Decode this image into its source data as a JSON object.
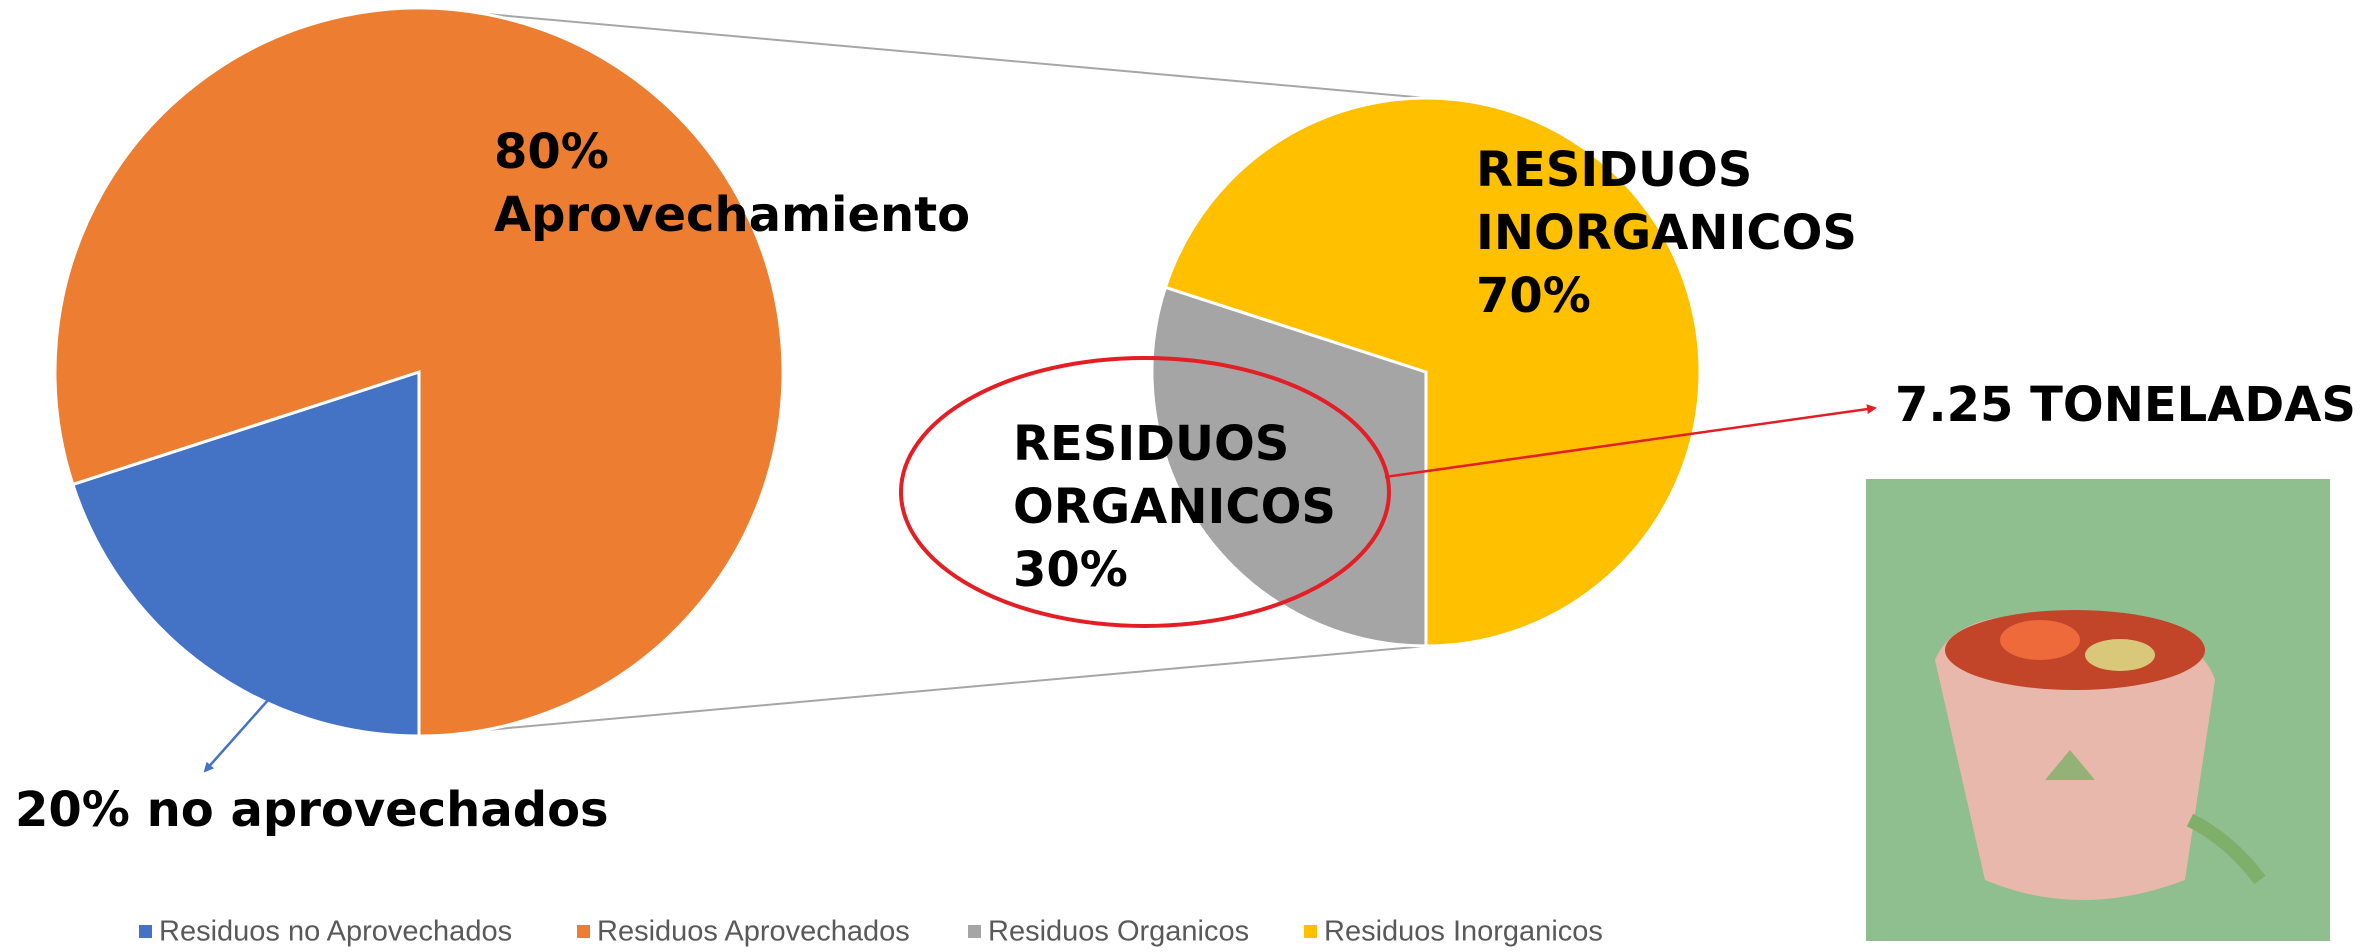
{
  "chart_data": {
    "type": "pie",
    "legend": "bottom",
    "pies": [
      {
        "categories": [
          "Residuos no Aprovechados",
          "Residuos Aprovechados"
        ],
        "colors": [
          "#4472c4",
          "#ed7d31"
        ],
        "values": [
          20,
          80
        ],
        "value_labels": [
          "20% no aprovechados",
          "80% Aprovechamiento"
        ]
      },
      {
        "categories": [
          "Residuos Organicos",
          "Residuos Inorganicos"
        ],
        "colors": [
          "#a5a5a5",
          "#ffc000"
        ],
        "values": [
          30,
          70
        ],
        "value_labels": [
          "RESIDUOS ORGANICOS 30%",
          "RESIDUOS INORGANICOS 70%"
        ]
      }
    ],
    "annotation": "7.25 TONELADAS"
  }
}
